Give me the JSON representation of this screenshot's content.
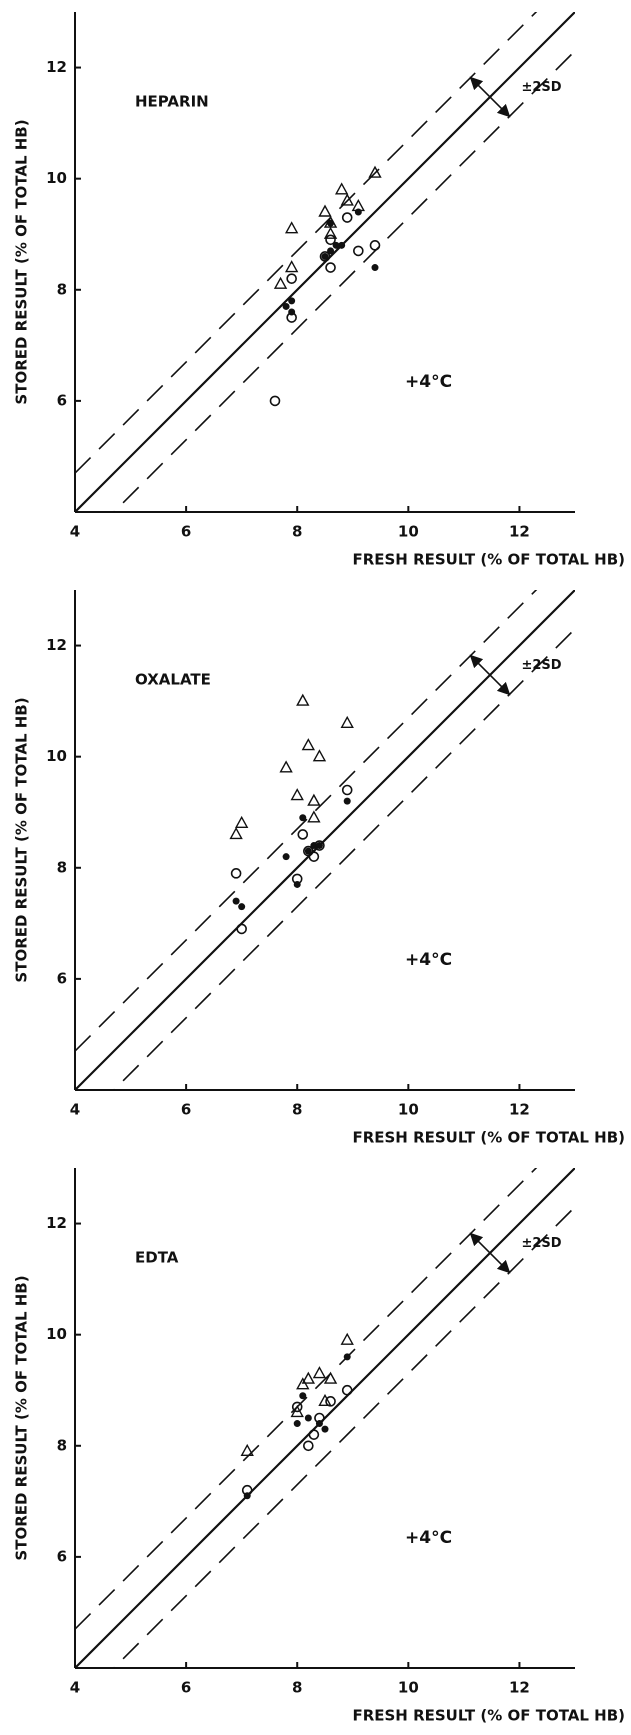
{
  "chart_data": [
    {
      "type": "scatter",
      "title": "HEPARIN",
      "annotation": "+4°C",
      "sd_label": "±2SD",
      "xlabel": "FRESH RESULT (% OF TOTAL HB)",
      "ylabel": "STORED RESULT (% OF TOTAL HB)",
      "xlim": [
        4,
        13
      ],
      "ylim": [
        4,
        13
      ],
      "xticks": [
        4,
        6,
        8,
        10,
        12
      ],
      "yticks": [
        6,
        8,
        10,
        12
      ],
      "identity_line": true,
      "sd_band": 0.7,
      "series": [
        {
          "marker": "triangle",
          "color": "#111",
          "x": [
            7.7,
            7.9,
            7.9,
            8.5,
            8.6,
            8.8,
            8.9,
            9.1,
            9.4,
            8.6
          ],
          "values": [
            8.1,
            9.1,
            8.4,
            9.4,
            9.0,
            9.8,
            9.6,
            9.5,
            10.1,
            9.2
          ]
        },
        {
          "marker": "open-circle",
          "color": "#111",
          "x": [
            7.6,
            7.9,
            7.9,
            8.6,
            8.6,
            8.9,
            9.1,
            9.4,
            8.5
          ],
          "values": [
            6.0,
            7.5,
            8.2,
            8.4,
            8.9,
            9.3,
            8.7,
            8.8,
            8.6
          ]
        },
        {
          "marker": "filled-circle",
          "color": "#111",
          "x": [
            7.8,
            7.9,
            7.9,
            8.5,
            8.6,
            8.6,
            8.8,
            9.1,
            9.4,
            8.7
          ],
          "values": [
            7.7,
            7.8,
            7.6,
            8.6,
            8.7,
            9.2,
            8.8,
            9.4,
            8.4,
            8.8
          ]
        }
      ]
    },
    {
      "type": "scatter",
      "title": "OXALATE",
      "annotation": "+4°C",
      "sd_label": "±2SD",
      "xlabel": "FRESH RESULT (% OF TOTAL HB)",
      "ylabel": "STORED RESULT (% OF TOTAL HB)",
      "xlim": [
        4,
        13
      ],
      "ylim": [
        4,
        13
      ],
      "xticks": [
        4,
        6,
        8,
        10,
        12
      ],
      "yticks": [
        6,
        8,
        10,
        12
      ],
      "identity_line": true,
      "sd_band": 0.7,
      "series": [
        {
          "marker": "triangle",
          "color": "#111",
          "x": [
            6.9,
            7.0,
            7.8,
            8.0,
            8.1,
            8.2,
            8.4,
            8.3,
            8.3,
            8.9
          ],
          "values": [
            8.6,
            8.8,
            9.8,
            9.3,
            11.0,
            10.2,
            10.0,
            9.2,
            8.9,
            10.6
          ]
        },
        {
          "marker": "open-circle",
          "color": "#111",
          "x": [
            6.9,
            7.0,
            8.0,
            8.1,
            8.2,
            8.3,
            8.9,
            8.4
          ],
          "values": [
            7.9,
            6.9,
            7.8,
            8.6,
            8.3,
            8.2,
            9.4,
            8.4
          ]
        },
        {
          "marker": "filled-circle",
          "color": "#111",
          "x": [
            6.9,
            7.0,
            7.8,
            8.0,
            8.1,
            8.3,
            8.4,
            8.9,
            8.2
          ],
          "values": [
            7.4,
            7.3,
            8.2,
            7.7,
            8.9,
            8.4,
            8.4,
            9.2,
            8.3
          ]
        }
      ]
    },
    {
      "type": "scatter",
      "title": "EDTA",
      "annotation": "+4°C",
      "sd_label": "±2SD",
      "xlabel": "FRESH RESULT (% OF TOTAL HB)",
      "ylabel": "STORED RESULT (% OF TOTAL HB)",
      "xlim": [
        4,
        13
      ],
      "ylim": [
        4,
        13
      ],
      "xticks": [
        4,
        6,
        8,
        10,
        12
      ],
      "yticks": [
        6,
        8,
        10,
        12
      ],
      "identity_line": true,
      "sd_band": 0.7,
      "series": [
        {
          "marker": "triangle",
          "color": "#111",
          "x": [
            7.1,
            8.1,
            8.2,
            8.4,
            8.6,
            8.9,
            8.5,
            8.0
          ],
          "values": [
            7.9,
            9.1,
            9.2,
            9.3,
            9.2,
            9.9,
            8.8,
            8.6
          ]
        },
        {
          "marker": "open-circle",
          "color": "#111",
          "x": [
            7.1,
            8.0,
            8.2,
            8.3,
            8.4,
            8.9,
            8.6
          ],
          "values": [
            7.2,
            8.7,
            8.0,
            8.2,
            8.5,
            9.0,
            8.8
          ]
        },
        {
          "marker": "filled-circle",
          "color": "#111",
          "x": [
            7.1,
            8.0,
            8.1,
            8.4,
            8.5,
            8.9,
            8.2
          ],
          "values": [
            7.1,
            8.4,
            8.9,
            8.4,
            8.3,
            9.6,
            8.5
          ]
        }
      ]
    }
  ]
}
